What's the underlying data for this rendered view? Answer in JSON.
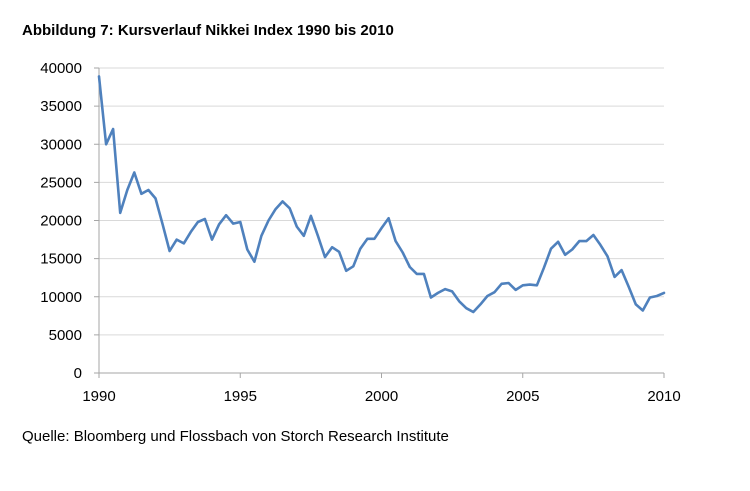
{
  "chart_data": {
    "type": "line",
    "title": "Abbildung 7: Kursverlauf Nikkei Index 1990 bis 2010",
    "source": "Quelle: Bloomberg und Flossbach von Storch Research Institute",
    "xlim": [
      1990,
      2010
    ],
    "ylim": [
      0,
      40000
    ],
    "grid": true,
    "x_ticks": [
      "1990",
      "1995",
      "2000",
      "2005",
      "2010"
    ],
    "y_ticks": [
      "0",
      "5000",
      "10000",
      "15000",
      "20000",
      "25000",
      "30000",
      "35000",
      "40000"
    ],
    "series": [
      {
        "color": "#4f81bd",
        "x": [
          1990.0,
          1990.25,
          1990.5,
          1990.75,
          1991.0,
          1991.25,
          1991.5,
          1991.75,
          1992.0,
          1992.25,
          1992.5,
          1992.75,
          1993.0,
          1993.25,
          1993.5,
          1993.75,
          1994.0,
          1994.25,
          1994.5,
          1994.75,
          1995.0,
          1995.25,
          1995.5,
          1995.75,
          1996.0,
          1996.25,
          1996.5,
          1996.75,
          1997.0,
          1997.25,
          1997.5,
          1997.75,
          1998.0,
          1998.25,
          1998.5,
          1998.75,
          1999.0,
          1999.25,
          1999.5,
          1999.75,
          2000.0,
          2000.25,
          2000.5,
          2000.75,
          2001.0,
          2001.25,
          2001.5,
          2001.75,
          2002.0,
          2002.25,
          2002.5,
          2002.75,
          2003.0,
          2003.25,
          2003.5,
          2003.75,
          2004.0,
          2004.25,
          2004.5,
          2004.75,
          2005.0,
          2005.25,
          2005.5,
          2005.75,
          2006.0,
          2006.25,
          2006.5,
          2006.75,
          2007.0,
          2007.25,
          2007.5,
          2007.75,
          2008.0,
          2008.25,
          2008.5,
          2008.75,
          2009.0,
          2009.25,
          2009.5,
          2009.75,
          2010.0
        ],
        "values": [
          38900,
          30000,
          32000,
          21000,
          24000,
          26300,
          23500,
          24000,
          22900,
          19500,
          16000,
          17500,
          17000,
          18500,
          19800,
          20200,
          17500,
          19500,
          20700,
          19600,
          19800,
          16200,
          14600,
          18000,
          20000,
          21500,
          22500,
          21600,
          19200,
          18000,
          20600,
          18000,
          15200,
          16500,
          15900,
          13400,
          14000,
          16300,
          17600,
          17600,
          19000,
          20300,
          17300,
          15800,
          13900,
          13000,
          13000,
          9900,
          10500,
          11000,
          10700,
          9400,
          8500,
          8000,
          9000,
          10100,
          10600,
          11700,
          11800,
          10900,
          11500,
          11600,
          11500,
          13800,
          16300,
          17200,
          15500,
          16200,
          17300,
          17300,
          18100,
          16800,
          15300,
          12600,
          13500,
          11300,
          9000,
          8200,
          9900,
          10100,
          10500
        ]
      }
    ]
  }
}
